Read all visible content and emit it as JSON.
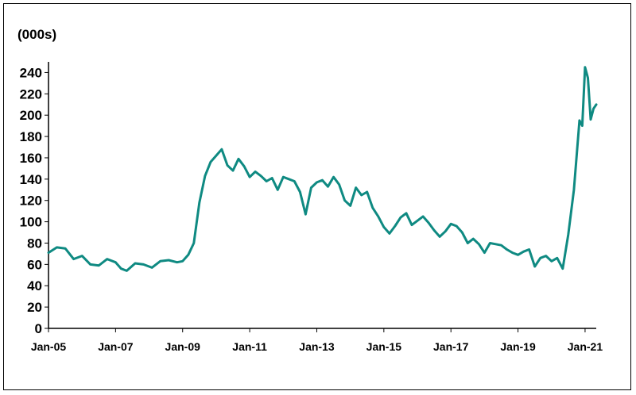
{
  "chart_data": {
    "type": "line",
    "unit_label": "(000s)",
    "x_tick_labels": [
      "Jan-05",
      "Jan-07",
      "Jan-09",
      "Jan-11",
      "Jan-13",
      "Jan-15",
      "Jan-17",
      "Jan-19",
      "Jan-21"
    ],
    "y_tick_labels": [
      "0",
      "20",
      "40",
      "60",
      "80",
      "100",
      "120",
      "140",
      "160",
      "180",
      "200",
      "220",
      "240"
    ],
    "ylim": [
      0,
      250
    ],
    "xlim": [
      "2005-01",
      "2021-05"
    ],
    "grid": false,
    "colors": {
      "line": "#0f8a82"
    },
    "series": [
      {
        "x": [
          "2005-01",
          "2005-04",
          "2005-07",
          "2005-10",
          "2006-01",
          "2006-04",
          "2006-07",
          "2006-10",
          "2007-01",
          "2007-03",
          "2007-05",
          "2007-08",
          "2007-11",
          "2008-02",
          "2008-05",
          "2008-08",
          "2008-11",
          "2009-01",
          "2009-03",
          "2009-05",
          "2009-07",
          "2009-09",
          "2009-11",
          "2010-01",
          "2010-03",
          "2010-05",
          "2010-07",
          "2010-09",
          "2010-11",
          "2011-01",
          "2011-03",
          "2011-05",
          "2011-07",
          "2011-09",
          "2011-11",
          "2012-01",
          "2012-03",
          "2012-05",
          "2012-07",
          "2012-09",
          "2012-11",
          "2013-01",
          "2013-03",
          "2013-05",
          "2013-07",
          "2013-09",
          "2013-11",
          "2014-01",
          "2014-03",
          "2014-05",
          "2014-07",
          "2014-09",
          "2014-11",
          "2015-01",
          "2015-03",
          "2015-05",
          "2015-07",
          "2015-09",
          "2015-11",
          "2016-01",
          "2016-03",
          "2016-05",
          "2016-07",
          "2016-09",
          "2016-11",
          "2017-01",
          "2017-03",
          "2017-05",
          "2017-07",
          "2017-09",
          "2017-11",
          "2018-01",
          "2018-03",
          "2018-05",
          "2018-07",
          "2018-09",
          "2018-11",
          "2019-01",
          "2019-03",
          "2019-05",
          "2019-07",
          "2019-09",
          "2019-11",
          "2020-01",
          "2020-03",
          "2020-05",
          "2020-07",
          "2020-09",
          "2020-11",
          "2020-12",
          "2021-01",
          "2021-02",
          "2021-03",
          "2021-04",
          "2021-05"
        ],
        "values": [
          71,
          76,
          75,
          65,
          68,
          60,
          59,
          65,
          62,
          56,
          54,
          61,
          60,
          57,
          63,
          64,
          62,
          63,
          69,
          80,
          118,
          143,
          156,
          162,
          168,
          153,
          148,
          159,
          152,
          142,
          147,
          143,
          138,
          141,
          130,
          142,
          140,
          138,
          128,
          107,
          132,
          137,
          139,
          133,
          142,
          135,
          120,
          115,
          132,
          125,
          128,
          113,
          105,
          95,
          89,
          96,
          104,
          108,
          97,
          101,
          105,
          99,
          92,
          86,
          91,
          98,
          96,
          90,
          80,
          84,
          79,
          71,
          80,
          79,
          78,
          74,
          71,
          69,
          72,
          74,
          58,
          66,
          68,
          63,
          66,
          56,
          88,
          130,
          195,
          190,
          245,
          235,
          196,
          206,
          210
        ]
      }
    ]
  }
}
